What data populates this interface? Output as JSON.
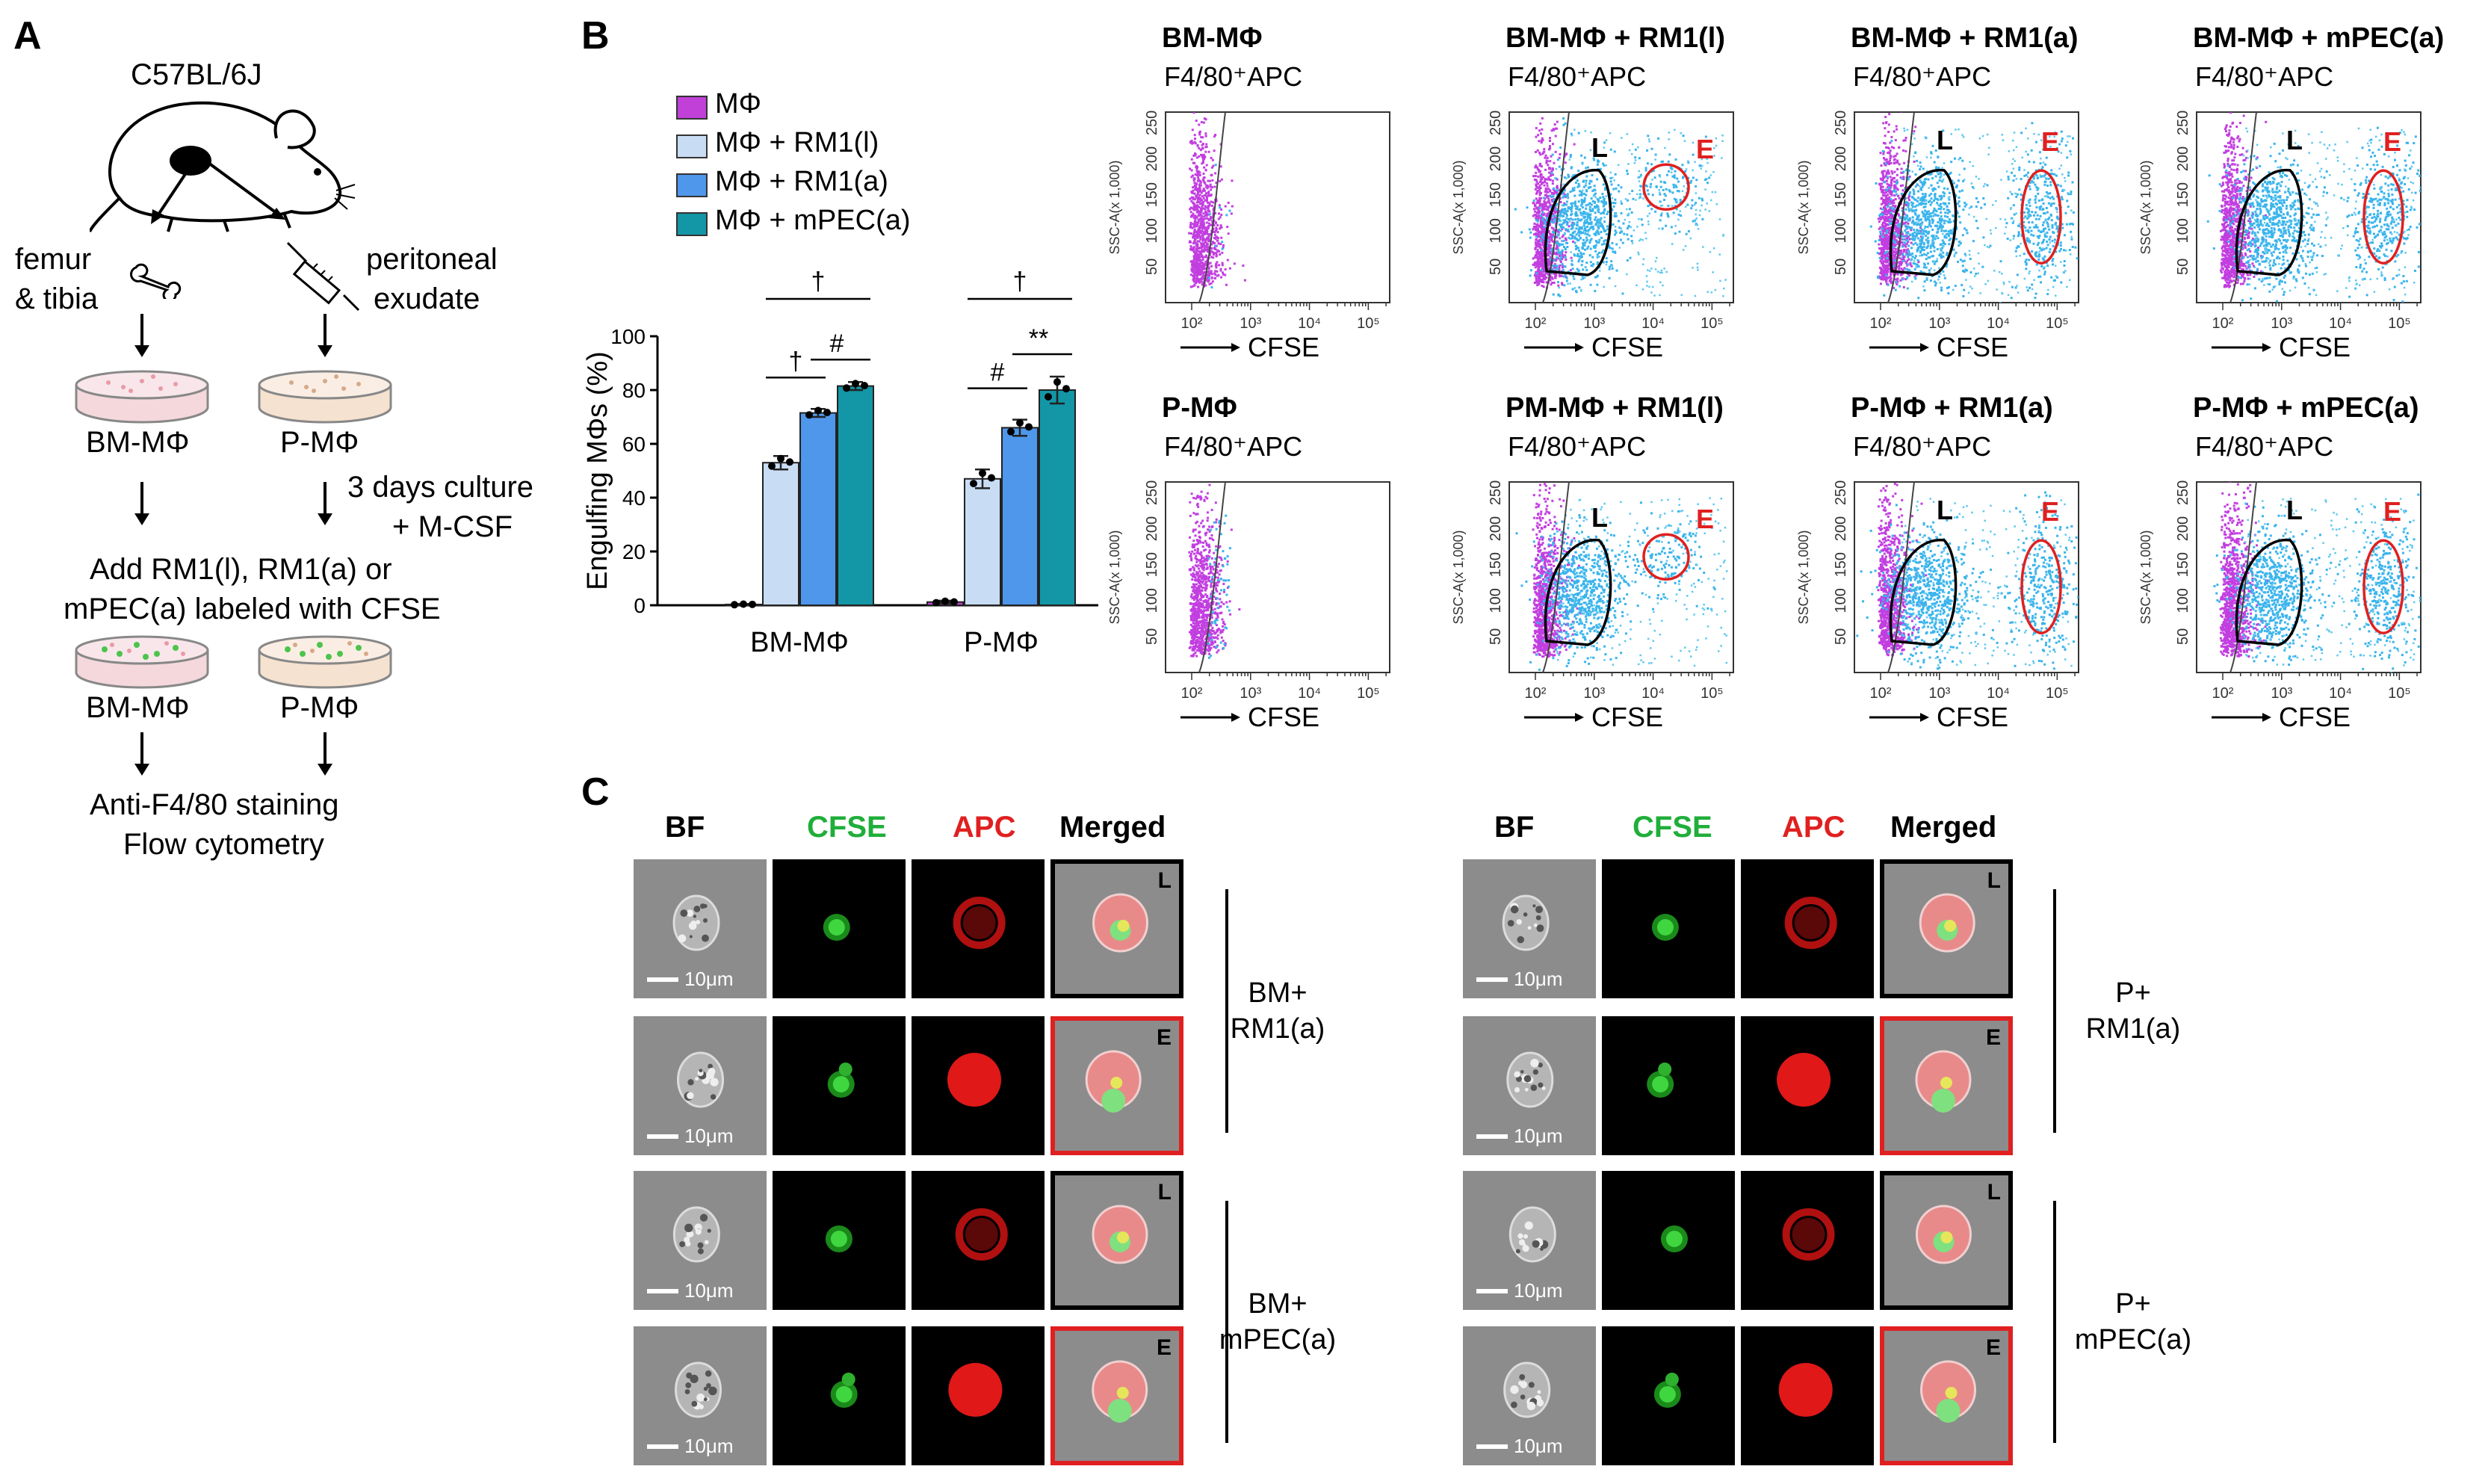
{
  "panel_a": {
    "label": "A",
    "mouse_strain": "C57BL/6J",
    "source_left": [
      "femur",
      "& tibia"
    ],
    "source_right": [
      "peritoneal",
      "exudate"
    ],
    "dish_left": "BM-MΦ",
    "dish_right": "P-MΦ",
    "culture_note": [
      "3 days culture",
      "+ M-CSF"
    ],
    "add_step": [
      "Add RM1(l), RM1(a) or",
      "mPEC(a) labeled with CFSE"
    ],
    "dish_left_2": "BM-MΦ",
    "dish_right_2": "P-MΦ",
    "final_step": [
      "Anti-F4/80 staining",
      "Flow cytometry"
    ]
  },
  "panel_b": {
    "label": "B",
    "legend": [
      {
        "label": "MΦ",
        "color": "#c040d8"
      },
      {
        "label": "MΦ + RM1(l)",
        "color": "#c8dcf4"
      },
      {
        "label": "MΦ + RM1(a)",
        "color": "#4f97ea"
      },
      {
        "label": "MΦ + mPEC(a)",
        "color": "#1396a6"
      }
    ],
    "significance": {
      "bm": [
        "†",
        "†",
        "#"
      ],
      "p": [
        "†",
        "#",
        "**"
      ]
    },
    "flow_titles": [
      "BM-MΦ",
      "BM-MΦ + RM1(l)",
      "BM-MΦ + RM1(a)",
      "BM-MΦ + mPEC(a)",
      "P-MΦ",
      "PM-MΦ + RM1(l)",
      "P-MΦ + RM1(a)",
      "P-MΦ + mPEC(a)"
    ],
    "flow_gate_label": "F4/80⁺APC",
    "flow_x_label": "CFSE",
    "flow_y_label": "SSC-A(x 1,000)",
    "flow_y_ticks": [
      "50",
      "100",
      "150",
      "200",
      "250"
    ],
    "flow_x_ticks": [
      "10²",
      "10³",
      "10⁴",
      "10⁵"
    ],
    "gate_L": "L",
    "gate_E": "E"
  },
  "chart_data": {
    "type": "bar",
    "title": "",
    "ylabel": "Engulfing MΦs (%)",
    "xlabel": "",
    "ylim": [
      0,
      100
    ],
    "yticks": [
      0,
      20,
      40,
      60,
      80,
      100
    ],
    "categories": [
      "BM-MΦ",
      "P-MΦ"
    ],
    "series": [
      {
        "name": "MΦ",
        "color": "#c040d8",
        "values": [
          0.3,
          1.2
        ],
        "errors": [
          0.2,
          0.5
        ]
      },
      {
        "name": "MΦ + RM1(l)",
        "color": "#c8dcf4",
        "values": [
          53,
          47
        ],
        "errors": [
          2.5,
          3.5
        ]
      },
      {
        "name": "MΦ + RM1(a)",
        "color": "#4f97ea",
        "values": [
          71.5,
          66
        ],
        "errors": [
          1.5,
          3
        ]
      },
      {
        "name": "MΦ + mPEC(a)",
        "color": "#1396a6",
        "values": [
          81.5,
          80
        ],
        "errors": [
          1.5,
          5
        ]
      }
    ]
  },
  "panel_c": {
    "label": "C",
    "col_headers": [
      "BF",
      "CFSE",
      "APC",
      "Merged"
    ],
    "col_colors": [
      "#000000",
      "#1fae3a",
      "#e02020",
      "#000000"
    ],
    "scale_text": "10μm",
    "row_markers": [
      "L",
      "E",
      "L",
      "E"
    ],
    "left_groups": [
      [
        "BM+",
        "RM1(a)"
      ],
      [
        "BM+",
        "mPEC(a)"
      ]
    ],
    "right_groups": [
      [
        "P+",
        "RM1(a)"
      ],
      [
        "P+",
        "mPEC(a)"
      ]
    ]
  }
}
